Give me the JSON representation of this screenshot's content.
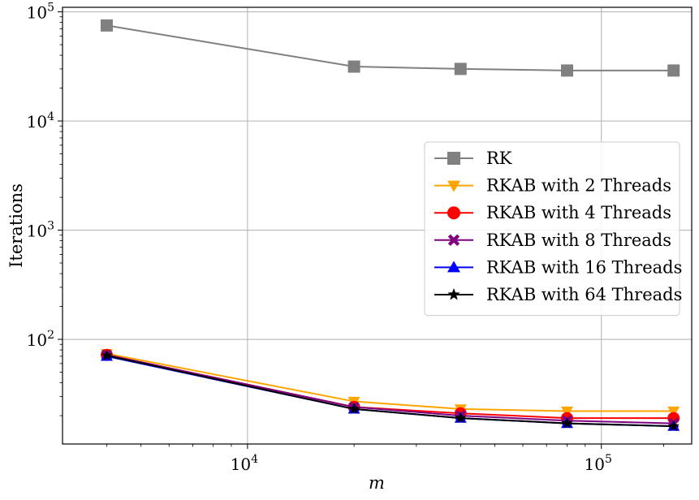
{
  "chart_data": {
    "type": "line",
    "xlabel": "m",
    "ylabel": "Iterations",
    "xscale": "log",
    "yscale": "log",
    "xlim": [
      3000,
      180000
    ],
    "ylim": [
      11,
      110000
    ],
    "grid": true,
    "legend_position": "center-right",
    "x_ticks": [
      {
        "value": 10000,
        "base": "10",
        "exp": "4"
      },
      {
        "value": 100000,
        "base": "10",
        "exp": "5"
      }
    ],
    "y_ticks": [
      {
        "value": 100,
        "base": "10",
        "exp": "2"
      },
      {
        "value": 1000,
        "base": "10",
        "exp": "3"
      },
      {
        "value": 10000,
        "base": "10",
        "exp": "4"
      },
      {
        "value": 100000,
        "base": "10",
        "exp": "5"
      }
    ],
    "x": [
      4000,
      20000,
      40000,
      80000,
      160000
    ],
    "series": [
      {
        "name": "RK",
        "color": "#808080",
        "marker": "square",
        "values": [
          75000,
          31500,
          30000,
          29000,
          29000
        ]
      },
      {
        "name": "RKAB with 2 Threads",
        "color": "#FFA500",
        "marker": "triangle-down",
        "values": [
          74,
          27,
          23,
          22,
          22
        ]
      },
      {
        "name": "RKAB with 4 Threads",
        "color": "#FF0000",
        "marker": "circle",
        "values": [
          72,
          24,
          21,
          19,
          19
        ]
      },
      {
        "name": "RKAB with 8 Threads",
        "color": "#800080",
        "marker": "x-filled",
        "values": [
          72,
          24,
          20,
          18,
          17
        ]
      },
      {
        "name": "RKAB with 16 Threads",
        "color": "#0000FF",
        "marker": "triangle-up",
        "values": [
          70,
          23,
          19,
          17,
          16
        ]
      },
      {
        "name": "RKAB with 64 Threads",
        "color": "#000000",
        "marker": "star",
        "values": [
          71,
          23,
          19,
          17,
          16
        ]
      }
    ]
  }
}
